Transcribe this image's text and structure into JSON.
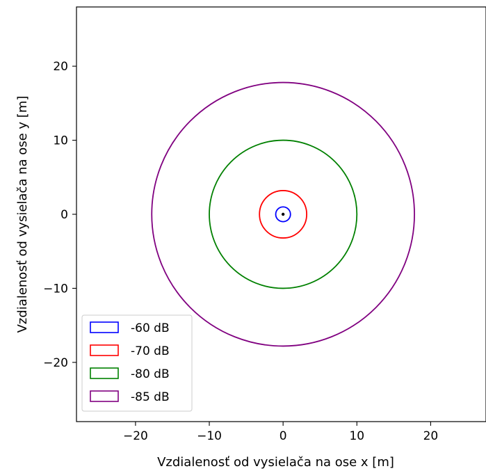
{
  "chart_data": {
    "type": "line",
    "title": "",
    "xlabel": "Vzdialenosť od vysielača na ose x [m]",
    "ylabel": "Vzdialenosť od vysielača na ose y [m]",
    "xlim": [
      -28,
      27.5
    ],
    "ylim": [
      -28,
      28
    ],
    "xticks": [
      -20,
      -10,
      0,
      10,
      20
    ],
    "yticks": [
      -20,
      -10,
      0,
      10,
      20
    ],
    "xtick_labels": [
      "−20",
      "−10",
      "0",
      "10",
      "20"
    ],
    "ytick_labels": [
      "−20",
      "−10",
      "0",
      "10",
      "20"
    ],
    "grid": false,
    "legend_position": "lower-left",
    "center_point": {
      "x": 0,
      "y": 0,
      "color": "#000000"
    },
    "series": [
      {
        "name": "-60 dB",
        "shape": "circle",
        "center": [
          0,
          0
        ],
        "radius": 1.0,
        "color": "#0000ff"
      },
      {
        "name": "-70 dB",
        "shape": "circle",
        "center": [
          0,
          0
        ],
        "radius": 3.2,
        "color": "#ff0000"
      },
      {
        "name": "-80 dB",
        "shape": "circle",
        "center": [
          0,
          0
        ],
        "radius": 10.0,
        "color": "#008000"
      },
      {
        "name": "-85 dB",
        "shape": "circle",
        "center": [
          0,
          0
        ],
        "radius": 17.8,
        "color": "#800080"
      }
    ]
  }
}
